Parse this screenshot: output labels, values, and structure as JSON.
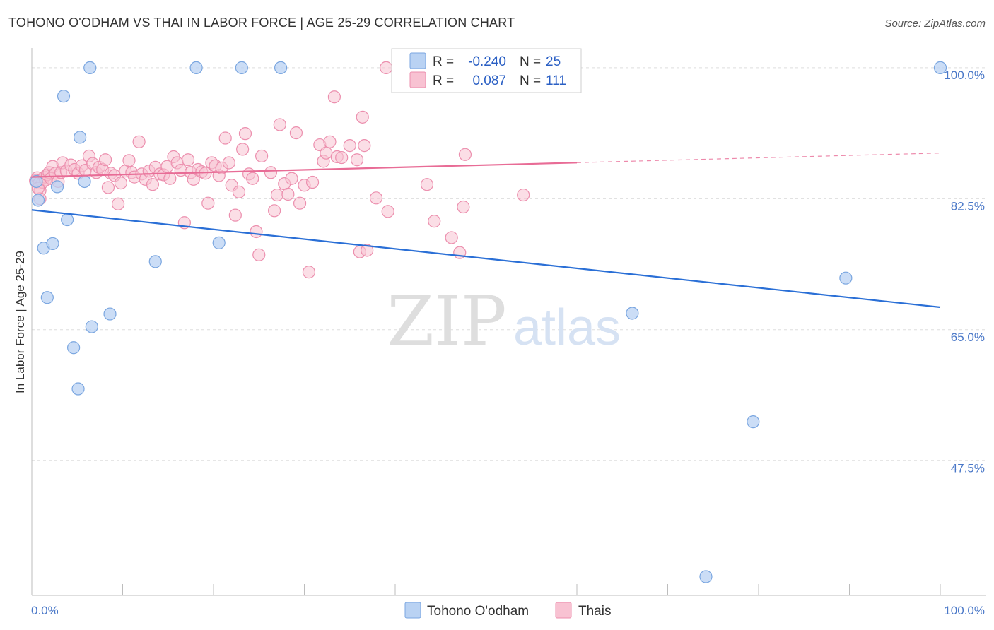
{
  "title": "TOHONO O'ODHAM VS THAI IN LABOR FORCE | AGE 25-29 CORRELATION CHART",
  "source": "Source: ZipAtlas.com",
  "watermark": {
    "zip": "ZIP",
    "atlas": "atlas"
  },
  "colors": {
    "blue_fill": "#b9d2f3",
    "blue_stroke": "#7aa6e0",
    "blue_line": "#2a6fd6",
    "pink_fill": "#f8c2d2",
    "pink_stroke": "#ec8fae",
    "pink_line": "#e86c96",
    "tick_label": "#4a78c8",
    "grid": "#dddddd"
  },
  "legend": {
    "r_label": "R =",
    "n_label": "N =",
    "rows": [
      {
        "r": "-0.240",
        "n": "25"
      },
      {
        "r": "0.087",
        "n": "111"
      }
    ]
  },
  "chart_data": {
    "type": "scatter",
    "title": "TOHONO O'ODHAM VS THAI IN LABOR FORCE | AGE 25-29 CORRELATION CHART",
    "xlabel": "",
    "ylabel": "In Labor Force | Age 25-29",
    "xlim": [
      0,
      100
    ],
    "ylim": [
      29.5,
      101.5
    ],
    "x_tick_labels": [
      {
        "value": 0,
        "label": "0.0%"
      },
      {
        "value": 100,
        "label": "100.0%"
      }
    ],
    "y_tick_labels": [
      {
        "value": 100,
        "label": "100.0%"
      },
      {
        "value": 82.5,
        "label": "82.5%"
      },
      {
        "value": 65,
        "label": "65.0%"
      },
      {
        "value": 47.5,
        "label": "47.5%"
      }
    ],
    "grid": true,
    "series": [
      {
        "name": "Tohono O'odham",
        "r": -0.24,
        "n": 25,
        "trend": {
          "x": [
            0,
            100
          ],
          "y": [
            81.0,
            68.0
          ],
          "dashed_from": null
        },
        "points": [
          [
            0.5,
            84.8
          ],
          [
            0.7,
            82.3
          ],
          [
            1.3,
            75.9
          ],
          [
            1.7,
            69.3
          ],
          [
            2.3,
            76.5
          ],
          [
            2.8,
            84.1
          ],
          [
            3.5,
            96.2
          ],
          [
            3.9,
            79.7
          ],
          [
            4.6,
            62.6
          ],
          [
            5.1,
            57.1
          ],
          [
            5.3,
            90.7
          ],
          [
            5.8,
            84.8
          ],
          [
            6.4,
            100.0
          ],
          [
            6.6,
            65.4
          ],
          [
            8.6,
            67.1
          ],
          [
            13.6,
            74.1
          ],
          [
            18.1,
            100.0
          ],
          [
            20.6,
            76.6
          ],
          [
            23.1,
            100.0
          ],
          [
            27.4,
            100.0
          ],
          [
            66.1,
            67.2
          ],
          [
            74.2,
            32.0
          ],
          [
            79.4,
            52.7
          ],
          [
            89.6,
            71.9
          ],
          [
            100.0,
            100.0
          ]
        ]
      },
      {
        "name": "Thais",
        "r": 0.087,
        "n": 111,
        "trend": {
          "x": [
            0,
            100
          ],
          "y": [
            85.4,
            88.6
          ],
          "dashed_from": 60
        },
        "points": [
          [
            0.4,
            84.9
          ],
          [
            0.6,
            85.3
          ],
          [
            0.8,
            84.6
          ],
          [
            0.9,
            83.6
          ],
          [
            1.0,
            85.0
          ],
          [
            1.2,
            84.7
          ],
          [
            1.4,
            85.4
          ],
          [
            1.5,
            85.0
          ],
          [
            1.7,
            85.7
          ],
          [
            1.9,
            86.0
          ],
          [
            2.1,
            85.2
          ],
          [
            2.3,
            86.8
          ],
          [
            2.6,
            85.9
          ],
          [
            0.9,
            82.5
          ],
          [
            0.7,
            83.9
          ],
          [
            2.9,
            84.8
          ],
          [
            3.2,
            86.0
          ],
          [
            3.4,
            87.3
          ],
          [
            3.8,
            86.2
          ],
          [
            4.3,
            87.0
          ],
          [
            4.7,
            86.4
          ],
          [
            5.1,
            85.9
          ],
          [
            5.5,
            86.9
          ],
          [
            5.9,
            86.3
          ],
          [
            6.3,
            88.2
          ],
          [
            6.7,
            87.2
          ],
          [
            7.1,
            86.0
          ],
          [
            7.4,
            86.7
          ],
          [
            7.8,
            86.4
          ],
          [
            8.1,
            87.7
          ],
          [
            8.4,
            84.0
          ],
          [
            8.7,
            85.9
          ],
          [
            9.1,
            85.6
          ],
          [
            9.5,
            81.8
          ],
          [
            9.8,
            84.6
          ],
          [
            10.3,
            86.2
          ],
          [
            10.7,
            87.6
          ],
          [
            11.0,
            86.0
          ],
          [
            11.3,
            85.4
          ],
          [
            11.8,
            90.1
          ],
          [
            12.1,
            85.8
          ],
          [
            12.5,
            85.1
          ],
          [
            12.9,
            86.2
          ],
          [
            13.3,
            84.4
          ],
          [
            13.6,
            86.7
          ],
          [
            14.1,
            85.8
          ],
          [
            14.5,
            85.7
          ],
          [
            14.9,
            86.8
          ],
          [
            15.2,
            85.2
          ],
          [
            15.6,
            88.1
          ],
          [
            16.0,
            87.3
          ],
          [
            16.4,
            86.3
          ],
          [
            16.8,
            79.3
          ],
          [
            17.2,
            87.7
          ],
          [
            17.5,
            86.0
          ],
          [
            17.8,
            85.1
          ],
          [
            18.3,
            86.4
          ],
          [
            18.7,
            86.1
          ],
          [
            19.1,
            85.9
          ],
          [
            19.4,
            81.9
          ],
          [
            19.8,
            87.3
          ],
          [
            20.2,
            86.9
          ],
          [
            20.6,
            85.6
          ],
          [
            20.9,
            86.6
          ],
          [
            21.3,
            90.6
          ],
          [
            21.7,
            87.3
          ],
          [
            22.0,
            84.3
          ],
          [
            22.4,
            80.3
          ],
          [
            22.8,
            83.4
          ],
          [
            23.2,
            89.1
          ],
          [
            23.5,
            91.2
          ],
          [
            23.9,
            85.8
          ],
          [
            24.3,
            85.2
          ],
          [
            24.7,
            78.1
          ],
          [
            25.0,
            75.0
          ],
          [
            25.3,
            88.2
          ],
          [
            26.3,
            86.0
          ],
          [
            26.7,
            80.9
          ],
          [
            27.0,
            83.0
          ],
          [
            27.3,
            92.4
          ],
          [
            27.8,
            84.5
          ],
          [
            28.2,
            83.1
          ],
          [
            28.6,
            85.2
          ],
          [
            29.1,
            91.3
          ],
          [
            29.5,
            81.9
          ],
          [
            30.0,
            84.3
          ],
          [
            30.5,
            72.7
          ],
          [
            30.9,
            84.7
          ],
          [
            31.7,
            89.7
          ],
          [
            32.1,
            87.5
          ],
          [
            32.4,
            88.6
          ],
          [
            32.8,
            90.1
          ],
          [
            33.3,
            96.1
          ],
          [
            33.6,
            88.1
          ],
          [
            34.1,
            88.0
          ],
          [
            35.0,
            89.6
          ],
          [
            35.8,
            87.7
          ],
          [
            36.1,
            75.4
          ],
          [
            36.4,
            93.4
          ],
          [
            36.6,
            89.6
          ],
          [
            36.9,
            75.6
          ],
          [
            37.9,
            82.6
          ],
          [
            39.0,
            100.0
          ],
          [
            39.2,
            80.8
          ],
          [
            43.5,
            84.4
          ],
          [
            44.3,
            79.5
          ],
          [
            46.2,
            77.3
          ],
          [
            47.1,
            75.3
          ],
          [
            47.5,
            81.4
          ],
          [
            47.7,
            88.4
          ],
          [
            54.1,
            83.0
          ]
        ]
      }
    ]
  },
  "bottom_legend": [
    {
      "label": "Tohono O'odham"
    },
    {
      "label": "Thais"
    }
  ]
}
